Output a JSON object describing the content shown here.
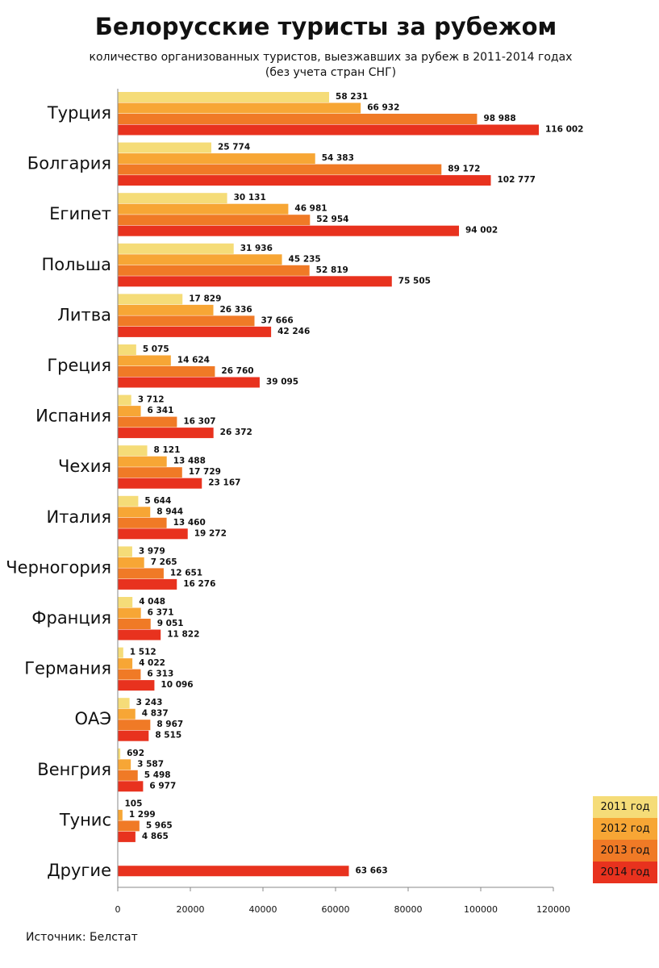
{
  "chart_data": {
    "type": "barh",
    "title": "Белорусские туристы за рубежом",
    "subtitle": "количество организованных туристов, выезжавших за рубеж в 2011-2014 годах",
    "subtitle2": "(без учета стран СНГ)",
    "source": "Источник: Белстат",
    "categories": [
      "Турция",
      "Болгария",
      "Египет",
      "Польша",
      "Литва",
      "Греция",
      "Испания",
      "Чехия",
      "Италия",
      "Черногория",
      "Франция",
      "Германия",
      "ОАЭ",
      "Венгрия",
      "Тунис",
      "Другие"
    ],
    "series": [
      {
        "name": "2011 год",
        "color": "#f5dc78",
        "values": [
          58231,
          25774,
          30131,
          31936,
          17829,
          5075,
          3712,
          8121,
          5644,
          3979,
          4048,
          1512,
          3243,
          692,
          105,
          null
        ],
        "value_labels": [
          "58 231",
          "25 774",
          "30 131",
          "31 936",
          "17 829",
          "5 075",
          "3 712",
          "8 121",
          "5 644",
          "3 979",
          "4 048",
          "1 512",
          "3 243",
          "692",
          "105",
          null
        ]
      },
      {
        "name": "2012 год",
        "color": "#f7a635",
        "values": [
          66932,
          54383,
          46981,
          45235,
          26336,
          14624,
          6341,
          13488,
          8944,
          7265,
          6371,
          4022,
          4837,
          3587,
          1299,
          null
        ],
        "value_labels": [
          "66 932",
          "54 383",
          "46 981",
          "45 235",
          "26 336",
          "14 624",
          "6 341",
          "13 488",
          "8 944",
          "7 265",
          "6 371",
          "4 022",
          "4 837",
          "3 587",
          "1 299",
          null
        ]
      },
      {
        "name": "2013 год",
        "color": "#f07a26",
        "values": [
          98988,
          89172,
          52954,
          52819,
          37666,
          26760,
          16307,
          17729,
          13460,
          12651,
          9051,
          6313,
          8967,
          5498,
          5965,
          null
        ],
        "value_labels": [
          "98 988",
          "89 172",
          "52 954",
          "52 819",
          "37 666",
          "26 760",
          "16 307",
          "17 729",
          "13 460",
          "12 651",
          "9 051",
          "6 313",
          "8 967",
          "5 498",
          "5 965",
          null
        ]
      },
      {
        "name": "2014 год",
        "color": "#e8321e",
        "values": [
          116002,
          102777,
          94002,
          75505,
          42246,
          39095,
          26372,
          23167,
          19272,
          16276,
          11822,
          10096,
          8515,
          6977,
          4865,
          63663
        ],
        "value_labels": [
          "116 002",
          "102 777",
          "94 002",
          "75 505",
          "42 246",
          "39 095",
          "26 372",
          "23 167",
          "19 272",
          "16 276",
          "11 822",
          "10 096",
          "8 515",
          "6 977",
          "4 865",
          "63 663"
        ]
      }
    ],
    "xlim": [
      0,
      120000
    ],
    "xticks": [
      0,
      20000,
      40000,
      60000,
      80000,
      100000,
      120000
    ],
    "legend": "lower right"
  }
}
